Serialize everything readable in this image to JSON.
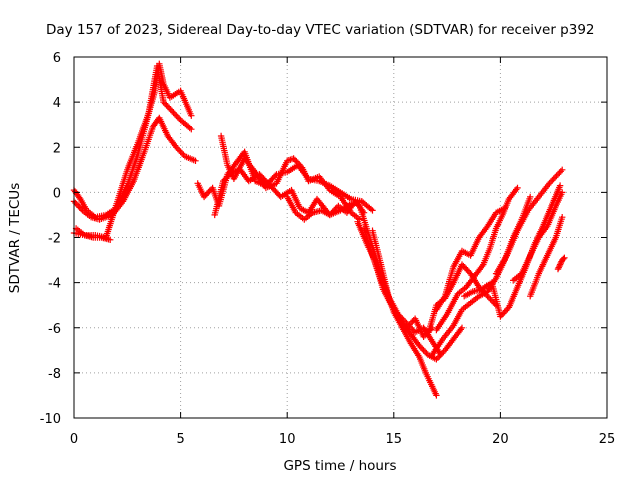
{
  "chart_data": {
    "type": "scatter",
    "title": "Day 157 of 2023, Sidereal Day-to-day VTEC variation (SDTVAR) for receiver p392",
    "xlabel": "GPS time / hours",
    "ylabel": "SDTVAR / TECUs",
    "xlim": [
      0,
      25
    ],
    "ylim": [
      -10,
      6
    ],
    "xticks": [
      "0",
      "5",
      "10",
      "15",
      "20",
      "25"
    ],
    "yticks": [
      "-10",
      "-8",
      "-6",
      "-4",
      "-2",
      "0",
      "2",
      "4",
      "6"
    ],
    "grid": true,
    "marker": "plus",
    "color": "#ff0000",
    "series": [
      {
        "x": [
          0.0,
          0.5,
          1.0,
          1.5,
          2.0,
          2.5,
          3.0,
          3.5,
          3.8,
          4.0,
          4.2,
          4.5,
          5.0,
          5.5
        ],
        "y": [
          -1.8,
          -1.9,
          -1.9,
          -2.0,
          -0.5,
          1.0,
          2.2,
          3.5,
          4.5,
          5.7,
          4.8,
          4.2,
          4.5,
          3.4
        ]
      },
      {
        "x": [
          0.0,
          0.3,
          0.6,
          1.0,
          1.5,
          2.0,
          2.5,
          3.0,
          3.5,
          3.9,
          4.2,
          4.6,
          5.0,
          5.5
        ],
        "y": [
          0.1,
          -0.3,
          -0.8,
          -1.1,
          -1.0,
          -0.7,
          0.3,
          1.7,
          3.5,
          5.6,
          4.0,
          3.6,
          3.2,
          2.8
        ]
      },
      {
        "x": [
          0.0,
          0.4,
          0.8,
          1.2,
          1.8,
          2.3,
          2.8,
          3.3,
          3.7,
          4.0,
          4.4,
          4.8,
          5.2,
          5.7
        ],
        "y": [
          -0.4,
          -0.8,
          -1.1,
          -1.2,
          -1.0,
          -0.4,
          0.5,
          1.8,
          2.9,
          3.3,
          2.5,
          2.0,
          1.6,
          1.4
        ]
      },
      {
        "x": [
          0.1,
          0.5,
          0.9,
          1.3,
          1.7
        ],
        "y": [
          -1.6,
          -1.9,
          -2.0,
          -2.0,
          -2.1
        ]
      },
      {
        "x": [
          5.8,
          6.1,
          6.5,
          6.8,
          7.2,
          7.6,
          8.0,
          8.5,
          9.0,
          9.5,
          10.0,
          10.5,
          11.0,
          11.5,
          12.0,
          12.5,
          13.0,
          13.5
        ],
        "y": [
          0.4,
          -0.2,
          0.2,
          -0.6,
          0.8,
          1.3,
          1.8,
          0.5,
          0.3,
          0.8,
          0.9,
          1.2,
          0.6,
          0.5,
          0.3,
          0.0,
          -0.3,
          -0.4
        ]
      },
      {
        "x": [
          6.6,
          7.0,
          7.4,
          7.8,
          8.2,
          8.7,
          9.2,
          9.7,
          10.2,
          10.6,
          11.0,
          11.4,
          12.0,
          12.5,
          13.0,
          13.5,
          14.0
        ],
        "y": [
          -1.0,
          0.5,
          0.9,
          1.0,
          0.5,
          0.8,
          0.3,
          -0.2,
          0.1,
          -0.7,
          -0.9,
          -0.3,
          -1.0,
          -0.8,
          -0.5,
          -0.4,
          -0.8
        ]
      },
      {
        "x": [
          6.9,
          7.2,
          7.5,
          8.0,
          8.5,
          9.0,
          9.5,
          10.0,
          10.3,
          10.7,
          11.0,
          11.5,
          12.0,
          12.5,
          13.0,
          13.4
        ],
        "y": [
          2.5,
          1.2,
          0.6,
          1.5,
          0.9,
          0.2,
          0.4,
          1.4,
          1.5,
          1.1,
          0.5,
          0.7,
          0.1,
          -0.2,
          -0.9,
          -1.2
        ]
      },
      {
        "x": [
          10.0,
          10.4,
          10.8,
          11.2,
          11.6,
          12.0,
          12.4,
          12.8,
          13.2,
          13.6
        ],
        "y": [
          -0.2,
          -0.9,
          -1.2,
          -0.9,
          -0.8,
          -1.0,
          -0.6,
          -0.9,
          -0.4,
          -0.9
        ]
      },
      {
        "x": [
          13.4,
          13.8,
          14.2,
          14.6,
          15.0,
          15.4,
          15.8,
          16.2,
          16.5,
          16.8,
          17.0
        ],
        "y": [
          -0.6,
          -1.8,
          -3.0,
          -4.2,
          -5.3,
          -6.0,
          -6.7,
          -7.3,
          -8.0,
          -8.6,
          -9.0
        ]
      },
      {
        "x": [
          13.3,
          13.7,
          14.1,
          14.5,
          15.0,
          15.4,
          15.8,
          16.2,
          16.6,
          17.0,
          17.4,
          17.8,
          18.2
        ],
        "y": [
          -1.3,
          -2.2,
          -3.0,
          -4.3,
          -5.2,
          -5.8,
          -6.3,
          -6.8,
          -7.2,
          -7.4,
          -7.0,
          -6.5,
          -6.0
        ]
      },
      {
        "x": [
          13.6,
          14.0,
          14.4,
          14.8,
          15.2,
          15.6,
          16.0,
          16.4,
          16.8,
          17.2
        ],
        "y": [
          -1.6,
          -2.8,
          -3.9,
          -4.7,
          -5.4,
          -5.8,
          -6.2,
          -6.0,
          -6.6,
          -7.2
        ]
      },
      {
        "x": [
          14.0,
          14.4,
          14.8,
          15.2,
          15.6,
          16.0,
          16.4,
          16.8
        ],
        "y": [
          -1.7,
          -3.2,
          -4.8,
          -5.6,
          -6.0,
          -5.6,
          -6.4,
          -6.0
        ]
      },
      {
        "x": [
          16.8,
          17.3,
          17.8,
          18.2,
          18.6,
          19.0,
          19.4,
          19.8,
          20.2,
          20.6,
          21.0,
          21.4
        ],
        "y": [
          -7.2,
          -6.5,
          -5.9,
          -5.2,
          -4.9,
          -4.6,
          -4.4,
          -3.8,
          -3.0,
          -2.0,
          -1.2,
          -0.2
        ]
      },
      {
        "x": [
          17.0,
          17.5,
          18.0,
          18.4,
          18.8,
          19.2,
          19.5,
          19.8,
          20.1,
          20.4,
          20.8
        ],
        "y": [
          -6.1,
          -5.4,
          -4.5,
          -4.2,
          -3.7,
          -3.2,
          -2.5,
          -1.6,
          -1.0,
          -0.3,
          0.2
        ]
      },
      {
        "x": [
          17.0,
          17.4,
          17.8,
          18.2,
          18.6,
          19.0,
          19.4,
          19.8,
          20.2
        ],
        "y": [
          -5.2,
          -4.6,
          -3.3,
          -2.6,
          -2.8,
          -2.0,
          -1.5,
          -0.9,
          -0.7
        ]
      },
      {
        "x": [
          16.6,
          17.0,
          17.4,
          17.8,
          18.2,
          18.6,
          19.0,
          19.4,
          19.8
        ],
        "y": [
          -6.3,
          -5.0,
          -4.7,
          -4.0,
          -3.2,
          -3.6,
          -4.2,
          -4.6,
          -5.0
        ]
      },
      {
        "x": [
          18.3,
          18.7,
          19.1,
          19.6,
          20.0,
          20.4,
          20.8,
          21.2,
          21.6,
          22.0,
          22.4,
          22.8
        ],
        "y": [
          -4.6,
          -4.4,
          -4.3,
          -4.0,
          -5.5,
          -5.1,
          -4.2,
          -3.3,
          -2.3,
          -1.5,
          -0.6,
          0.3
        ]
      },
      {
        "x": [
          19.8,
          20.3,
          20.8,
          21.3,
          21.8,
          22.3,
          22.7,
          22.9
        ],
        "y": [
          -3.6,
          -2.8,
          -1.7,
          -0.8,
          -0.2,
          0.4,
          0.8,
          1.0
        ]
      },
      {
        "x": [
          20.6,
          21.0,
          21.4,
          21.8,
          22.2,
          22.6,
          22.9
        ],
        "y": [
          -3.9,
          -3.6,
          -2.8,
          -2.0,
          -1.5,
          -0.6,
          0.0
        ]
      },
      {
        "x": [
          21.4,
          21.8,
          22.2,
          22.6,
          22.9
        ],
        "y": [
          -4.6,
          -3.6,
          -2.8,
          -2.0,
          -1.1
        ]
      },
      {
        "x": [
          22.7,
          22.8,
          22.9,
          23.0
        ],
        "y": [
          -3.4,
          -3.2,
          -3.0,
          -2.9
        ]
      }
    ]
  }
}
